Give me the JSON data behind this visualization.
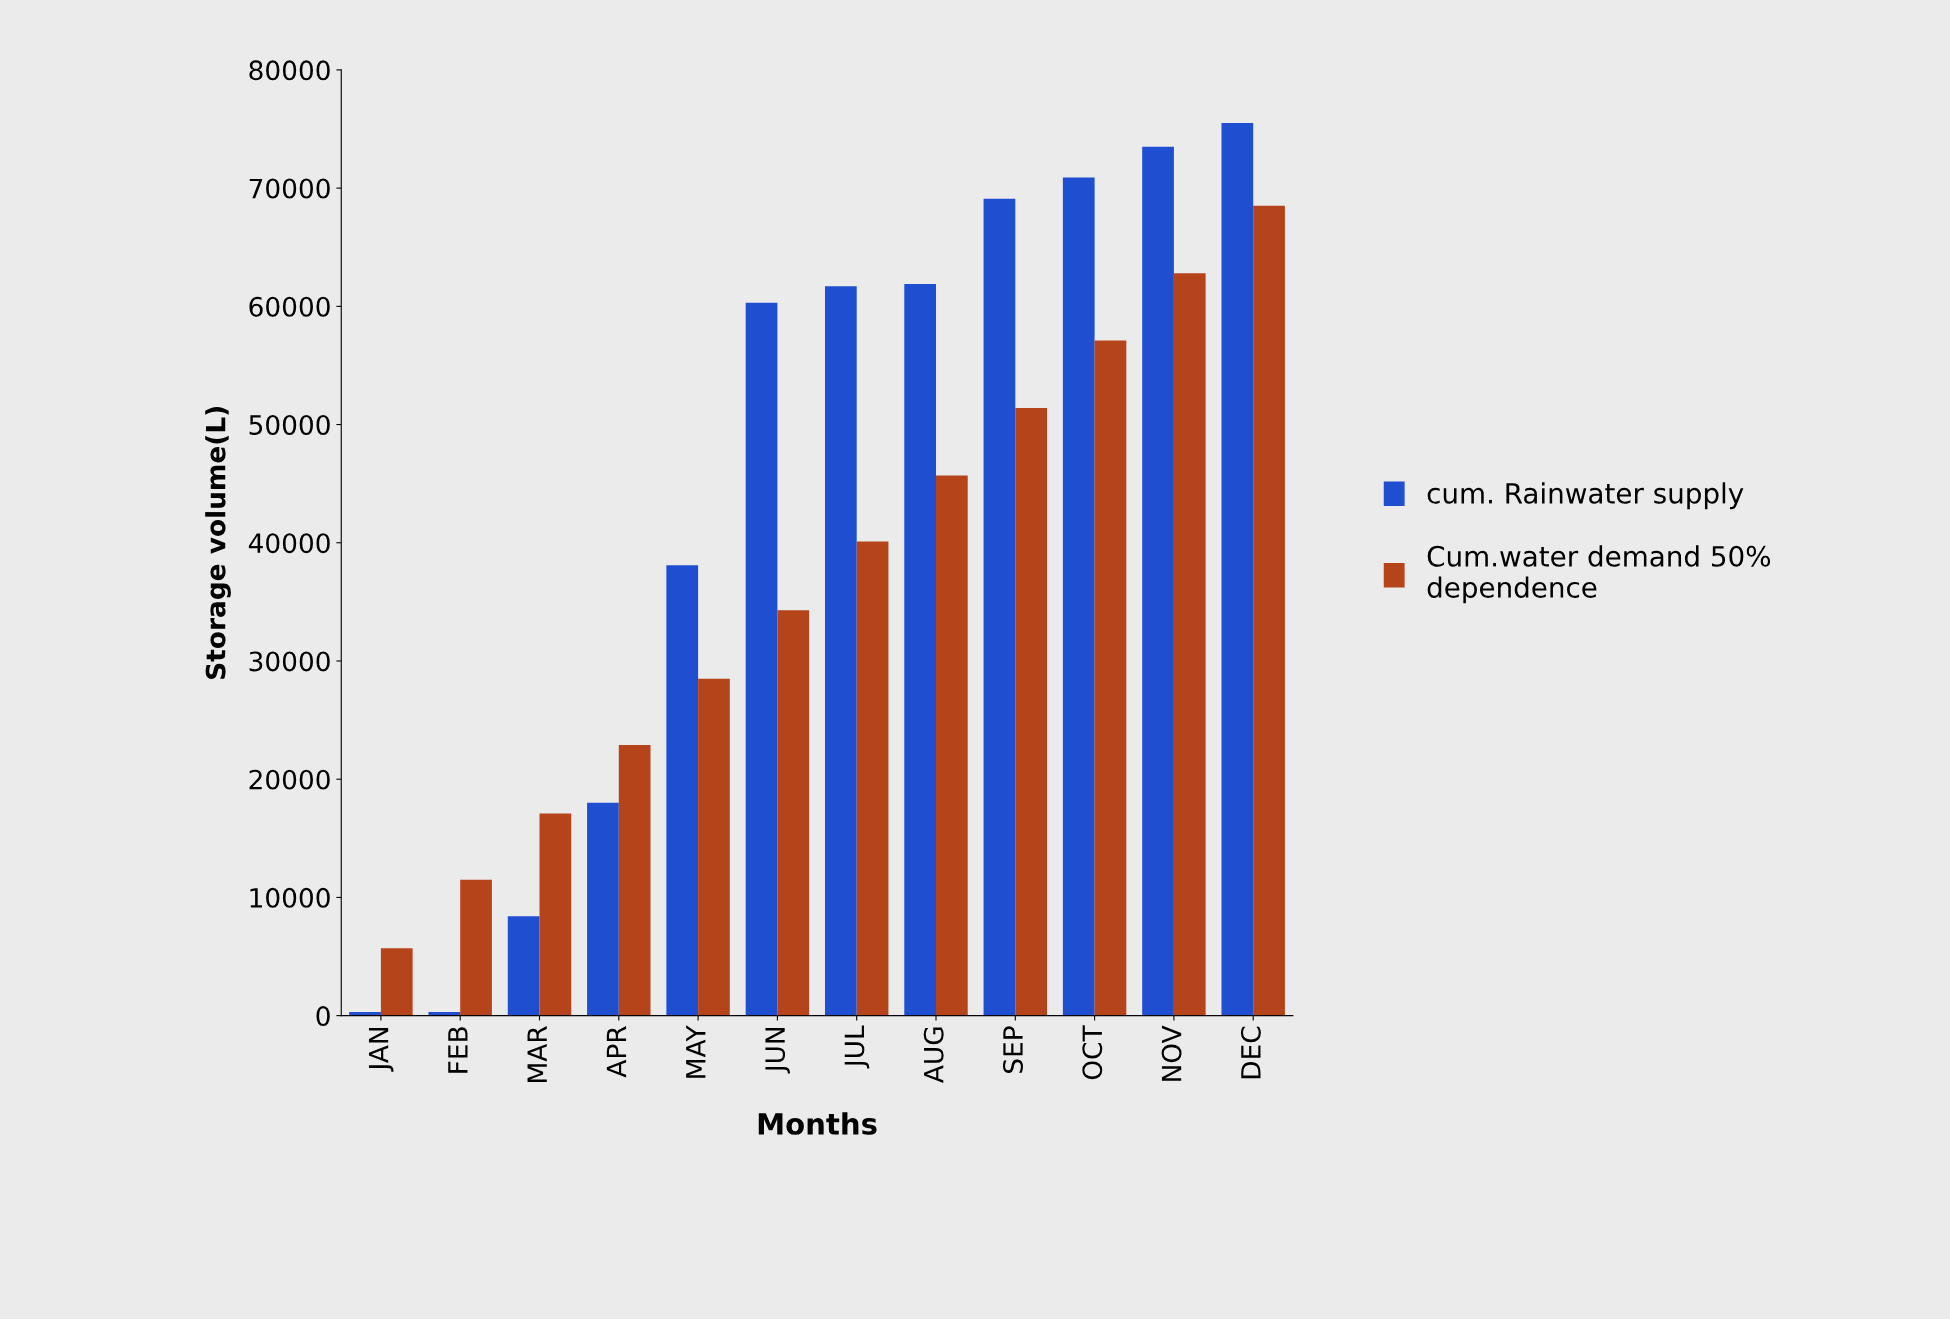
{
  "chart_data": {
    "type": "bar",
    "xlabel": "Months",
    "ylabel": "Storage volume(L)",
    "categories": [
      "JAN",
      "FEB",
      "MAR",
      "APR",
      "MAY",
      "JUN",
      "JUL",
      "AUG",
      "SEP",
      "OCT",
      "NOV",
      "DEC"
    ],
    "series": [
      {
        "name": "cum. Rainwater supply",
        "color": "#1f4fd0",
        "values": [
          300,
          300,
          8400,
          18000,
          38100,
          60300,
          61700,
          61900,
          69100,
          70900,
          73500,
          75500
        ]
      },
      {
        "name": "Cum.water demand 50% dependence",
        "color": "#b5441a",
        "values": [
          5700,
          11500,
          17100,
          22900,
          28500,
          34300,
          40100,
          45700,
          51400,
          57100,
          62800,
          68500
        ]
      }
    ],
    "ylim": [
      0,
      80000
    ],
    "yticks": [
      0,
      10000,
      20000,
      30000,
      40000,
      50000,
      60000,
      70000,
      80000
    ],
    "grid": false,
    "legend": "right"
  }
}
